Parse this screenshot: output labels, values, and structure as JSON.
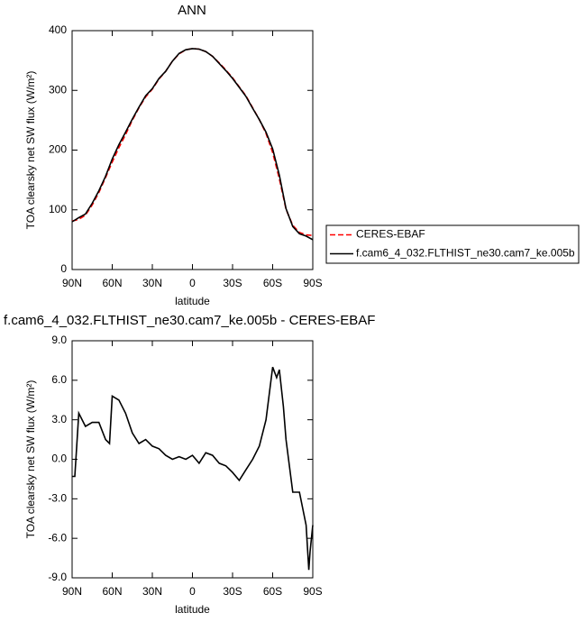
{
  "chart_data": [
    {
      "type": "line",
      "title": "ANN",
      "xlabel": "latitude",
      "ylabel": "TOA clearsky net SW flux (W/m²)",
      "x": [
        90,
        85,
        80,
        75,
        70,
        65,
        60,
        55,
        50,
        45,
        40,
        35,
        30,
        25,
        20,
        15,
        10,
        5,
        0,
        -5,
        -10,
        -15,
        -20,
        -25,
        -30,
        -35,
        -40,
        -45,
        -50,
        -55,
        -60,
        -65,
        -70,
        -75,
        -80,
        -85,
        -90
      ],
      "series": [
        {
          "name": "CERES-EBAF",
          "color": "#ff0000",
          "dash": true,
          "values": [
            81,
            84,
            91,
            108,
            129,
            154,
            180,
            204,
            226,
            250,
            271,
            289,
            302,
            319,
            332,
            349,
            361,
            368,
            370,
            369,
            365,
            357,
            346,
            334,
            321,
            306,
            291,
            271,
            251,
            228,
            196,
            152,
            101,
            74,
            62,
            58,
            57
          ]
        },
        {
          "name": "f.cam6_4_032.FLTHIST_ne30.cam7_ke.005b",
          "color": "#000000",
          "dash": false,
          "values": [
            80,
            87,
            93,
            111,
            132,
            156,
            185,
            209,
            230,
            252,
            272,
            291,
            303,
            320,
            332,
            349,
            362,
            368,
            370,
            369,
            365,
            357,
            345,
            333,
            320,
            305,
            290,
            270,
            251,
            230,
            202,
            158,
            102,
            72,
            60,
            56,
            50
          ]
        }
      ],
      "xlim": [
        90,
        -90
      ],
      "xticks": [
        {
          "value": 90,
          "label": "90N"
        },
        {
          "value": 60,
          "label": "60N"
        },
        {
          "value": 30,
          "label": "30N"
        },
        0,
        {
          "value": -30,
          "label": "30S"
        },
        {
          "value": -60,
          "label": "60S"
        },
        {
          "value": -90,
          "label": "90S"
        }
      ],
      "ylim": [
        0,
        400
      ],
      "yticks": [
        0,
        100,
        200,
        300,
        400
      ],
      "legend": "right"
    },
    {
      "type": "line",
      "title": "f.cam6_4_032.FLTHIST_ne30.cam7_ke.005b - CERES-EBAF",
      "xlabel": "latitude",
      "ylabel": "TOA clearsky net SW flux (W/m²)",
      "x": [
        90,
        88,
        85,
        80,
        75,
        70,
        65,
        62,
        60,
        55,
        50,
        45,
        40,
        35,
        30,
        25,
        20,
        15,
        10,
        5,
        0,
        -5,
        -10,
        -15,
        -20,
        -25,
        -30,
        -35,
        -40,
        -45,
        -50,
        -55,
        -60,
        -63,
        -65,
        -68,
        -70,
        -75,
        -80,
        -85,
        -87,
        -88,
        -90
      ],
      "values": [
        -1.3,
        -1.3,
        3.5,
        2.5,
        2.8,
        2.8,
        1.5,
        1.2,
        4.8,
        4.5,
        3.5,
        2.0,
        1.2,
        1.5,
        1.0,
        0.8,
        0.3,
        0.0,
        0.2,
        0.0,
        0.3,
        -0.3,
        0.5,
        0.3,
        -0.3,
        -0.5,
        -1.0,
        -1.6,
        -0.8,
        0.0,
        1.0,
        3.0,
        7.0,
        6.2,
        6.8,
        4.0,
        1.5,
        -2.5,
        -2.5,
        -5.0,
        -8.4,
        -7.0,
        -5.0
      ],
      "color": "#000000",
      "xlim": [
        90,
        -90
      ],
      "xticks": [
        {
          "value": 90,
          "label": "90N"
        },
        {
          "value": 60,
          "label": "60N"
        },
        {
          "value": 30,
          "label": "30N"
        },
        0,
        {
          "value": -30,
          "label": "30S"
        },
        {
          "value": -60,
          "label": "60S"
        },
        {
          "value": -90,
          "label": "90S"
        }
      ],
      "ylim": [
        -9,
        9
      ],
      "yticks": [
        {
          "value": -9,
          "label": "-9.0"
        },
        {
          "value": -6,
          "label": "-6.0"
        },
        {
          "value": -3,
          "label": "-3.0"
        },
        {
          "value": 0,
          "label": "0.0"
        },
        {
          "value": 3,
          "label": "3.0"
        },
        {
          "value": 6,
          "label": "6.0"
        },
        {
          "value": 9,
          "label": "9.0"
        }
      ]
    }
  ]
}
